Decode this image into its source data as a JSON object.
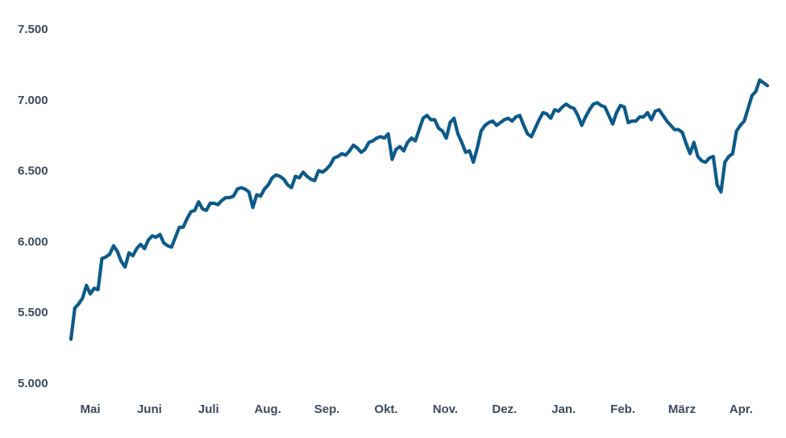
{
  "chart_data": {
    "type": "line",
    "title": "",
    "xlabel": "",
    "ylabel": "",
    "ylim": [
      5000,
      7500
    ],
    "yticks": [
      5000,
      5500,
      6000,
      6500,
      7000,
      7500
    ],
    "ytick_labels": [
      "5.000",
      "5.500",
      "6.000",
      "6.500",
      "7.000",
      "7.500"
    ],
    "xtick_labels": [
      "Mai",
      "Juni",
      "Juli",
      "Aug.",
      "Sep.",
      "Okt.",
      "Nov.",
      "Dez.",
      "Jan.",
      "Feb.",
      "März",
      "Apr."
    ],
    "grid": false,
    "legend": "none",
    "colors": {
      "line": "#0d5a8a",
      "tick_text": "#3d4a5c"
    },
    "series": [
      {
        "values": [
          5310,
          5530,
          5560,
          5600,
          5690,
          5630,
          5670,
          5660,
          5880,
          5890,
          5910,
          5970,
          5930,
          5860,
          5820,
          5920,
          5900,
          5950,
          5980,
          5950,
          6010,
          6040,
          6030,
          6050,
          5990,
          5970,
          5960,
          6030,
          6100,
          6100,
          6160,
          6210,
          6220,
          6280,
          6230,
          6220,
          6270,
          6270,
          6260,
          6290,
          6310,
          6310,
          6320,
          6370,
          6380,
          6370,
          6350,
          6240,
          6330,
          6320,
          6370,
          6400,
          6450,
          6470,
          6460,
          6440,
          6400,
          6380,
          6460,
          6450,
          6490,
          6460,
          6440,
          6430,
          6500,
          6490,
          6510,
          6540,
          6590,
          6600,
          6620,
          6610,
          6640,
          6680,
          6660,
          6630,
          6650,
          6700,
          6710,
          6730,
          6740,
          6730,
          6760,
          6580,
          6650,
          6670,
          6640,
          6700,
          6730,
          6710,
          6790,
          6870,
          6890,
          6860,
          6860,
          6800,
          6780,
          6730,
          6840,
          6870,
          6760,
          6700,
          6630,
          6640,
          6560,
          6660,
          6780,
          6820,
          6840,
          6850,
          6820,
          6840,
          6860,
          6870,
          6850,
          6880,
          6890,
          6820,
          6760,
          6740,
          6800,
          6860,
          6910,
          6900,
          6870,
          6930,
          6920,
          6950,
          6970,
          6950,
          6940,
          6890,
          6820,
          6880,
          6930,
          6970,
          6980,
          6960,
          6950,
          6890,
          6830,
          6910,
          6960,
          6950,
          6840,
          6850,
          6850,
          6880,
          6880,
          6910,
          6860,
          6920,
          6930,
          6890,
          6850,
          6820,
          6790,
          6790,
          6770,
          6690,
          6620,
          6700,
          6600,
          6570,
          6560,
          6590,
          6600,
          6400,
          6350,
          6560,
          6600,
          6620,
          6780,
          6820,
          6850,
          6940,
          7030,
          7060,
          7140,
          7120,
          7100
        ]
      }
    ]
  }
}
